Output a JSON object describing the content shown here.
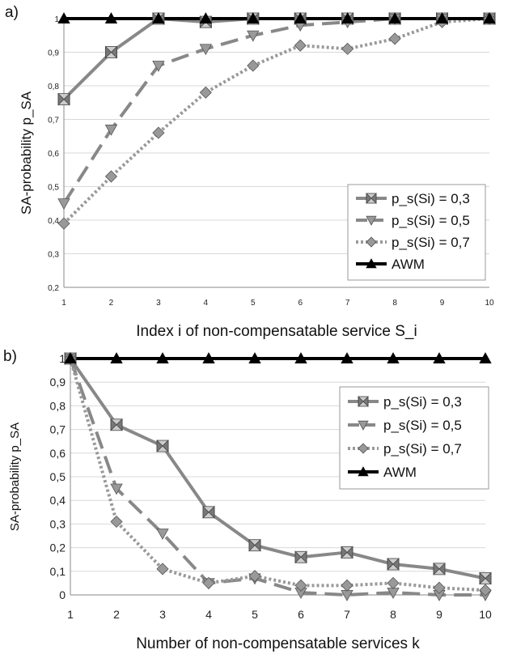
{
  "chart_data": [
    {
      "panel_label": "a)",
      "type": "line",
      "xlabel": "Index i of non-compensatable service S_i",
      "ylabel": "SA-probability p_SA",
      "x": [
        1,
        2,
        3,
        4,
        5,
        6,
        7,
        8,
        9,
        10
      ],
      "xlim": [
        1,
        10
      ],
      "ylim": [
        0.2,
        1.0
      ],
      "y_ticks": [
        "0,2",
        "0,3",
        "0,4",
        "0,5",
        "0,6",
        "0,7",
        "0,8",
        "0,9",
        "1"
      ],
      "x_ticks": [
        "1",
        "2",
        "3",
        "4",
        "5",
        "6",
        "7",
        "8",
        "9",
        "10"
      ],
      "grid": "horizontal",
      "legend": "bottom-right",
      "series": [
        {
          "name": "p_s(Si) = 0,3",
          "marker": "bowtie",
          "dash": "solid",
          "color": "#888888",
          "values": [
            0.76,
            0.9,
            1.0,
            0.99,
            1.0,
            1.0,
            1.0,
            1.0,
            1.0,
            1.0
          ]
        },
        {
          "name": "p_s(Si) = 0,5",
          "marker": "triangle-down",
          "dash": "dashed",
          "color": "#888888",
          "values": [
            0.45,
            0.67,
            0.86,
            0.91,
            0.95,
            0.98,
            0.99,
            1.0,
            1.0,
            1.0
          ]
        },
        {
          "name": "p_s(Si) = 0,7",
          "marker": "diamond",
          "dash": "dotted",
          "color": "#999999",
          "values": [
            0.39,
            0.53,
            0.66,
            0.78,
            0.86,
            0.92,
            0.91,
            0.94,
            0.99,
            1.0
          ]
        },
        {
          "name": "AWM",
          "marker": "triangle-up",
          "dash": "solid",
          "color": "#000000",
          "values": [
            1.0,
            1.0,
            1.0,
            1.0,
            1.0,
            1.0,
            1.0,
            1.0,
            1.0,
            1.0
          ]
        }
      ]
    },
    {
      "panel_label": "b)",
      "type": "line",
      "xlabel": "Number of non-compensatable services k",
      "ylabel": "SA-probability p_SA",
      "x": [
        1,
        2,
        3,
        4,
        5,
        6,
        7,
        8,
        9,
        10
      ],
      "xlim": [
        1,
        10
      ],
      "ylim": [
        0,
        1.0
      ],
      "y_ticks": [
        "0",
        "0,1",
        "0,2",
        "0,3",
        "0,4",
        "0,5",
        "0,6",
        "0,7",
        "0,8",
        "0,9",
        "1"
      ],
      "x_ticks": [
        "1",
        "2",
        "3",
        "4",
        "5",
        "6",
        "7",
        "8",
        "9",
        "10"
      ],
      "grid": "horizontal",
      "legend": "top-right",
      "series": [
        {
          "name": "p_s(Si) = 0,3",
          "marker": "bowtie",
          "dash": "solid",
          "color": "#888888",
          "values": [
            1.0,
            0.72,
            0.63,
            0.35,
            0.21,
            0.16,
            0.18,
            0.13,
            0.11,
            0.07
          ]
        },
        {
          "name": "p_s(Si) = 0,5",
          "marker": "triangle-down",
          "dash": "dashed",
          "color": "#888888",
          "values": [
            1.0,
            0.45,
            0.26,
            0.05,
            0.07,
            0.01,
            0.0,
            0.01,
            0.0,
            0.0
          ]
        },
        {
          "name": "p_s(Si) = 0,7",
          "marker": "diamond",
          "dash": "dotted",
          "color": "#999999",
          "values": [
            1.0,
            0.31,
            0.11,
            0.05,
            0.08,
            0.04,
            0.04,
            0.05,
            0.03,
            0.02
          ]
        },
        {
          "name": "AWM",
          "marker": "triangle-up",
          "dash": "solid",
          "color": "#000000",
          "values": [
            1.0,
            1.0,
            1.0,
            1.0,
            1.0,
            1.0,
            1.0,
            1.0,
            1.0,
            1.0
          ]
        }
      ]
    }
  ]
}
